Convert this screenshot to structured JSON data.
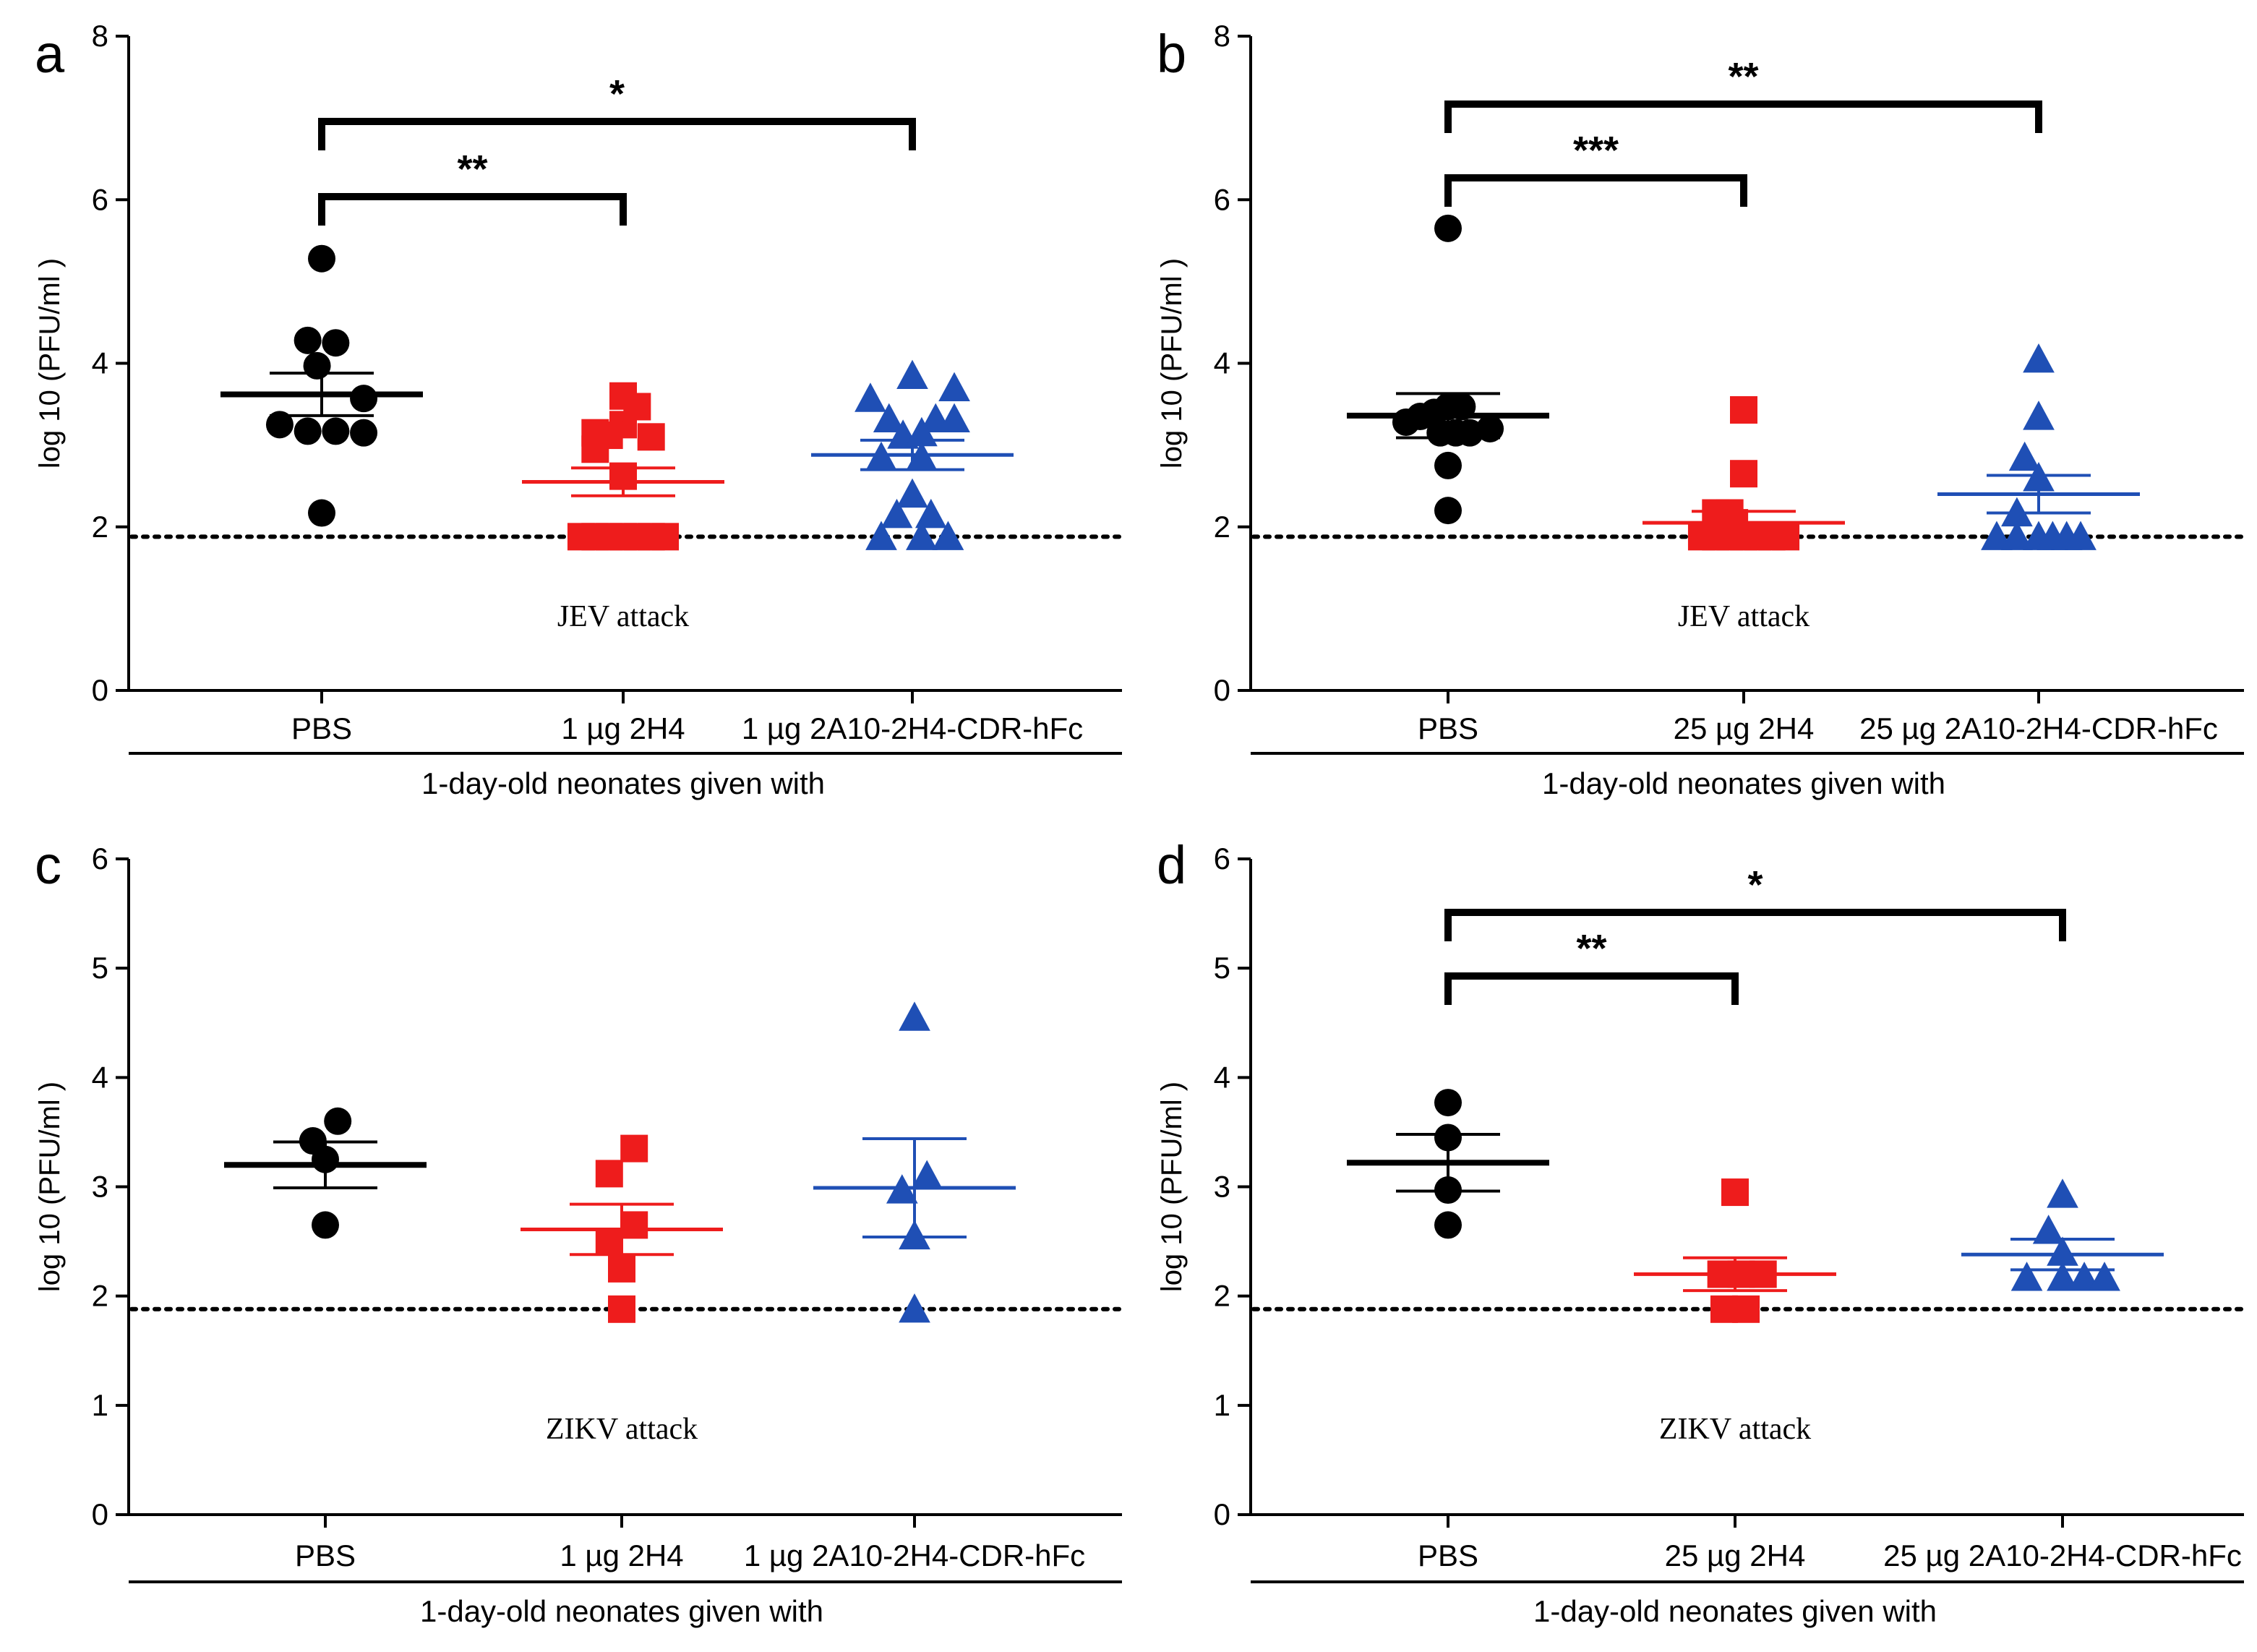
{
  "chart_data": [
    {
      "panel": "a",
      "type": "scatter",
      "ylabel": "log 10 (PFU/ml )",
      "ylim": [
        0,
        8
      ],
      "yticks": [
        "0",
        "2",
        "4",
        "6",
        "8"
      ],
      "detection_limit": 1.88,
      "annotation": "JEV attack",
      "group_label": "1-day-old neonates given with",
      "categories": [
        "PBS",
        "1 µg 2H4",
        "1 µg 2A10-2H4-CDR-hFc"
      ],
      "series": [
        {
          "name": "PBS",
          "marker": "circle",
          "color": "#000000",
          "mean": 3.62,
          "sem": 0.26,
          "points": [
            [
              0.0,
              5.28
            ],
            [
              -0.09,
              4.28
            ],
            [
              0.09,
              4.25
            ],
            [
              -0.03,
              3.97
            ],
            [
              -0.27,
              3.25
            ],
            [
              -0.09,
              3.17
            ],
            [
              0.09,
              3.17
            ],
            [
              0.27,
              3.15
            ],
            [
              0.27,
              3.57
            ],
            [
              0.0,
              2.17
            ]
          ]
        },
        {
          "name": "1 µg 2H4",
          "marker": "square",
          "color": "#ee1c1c",
          "mean": 2.55,
          "sem": 0.17,
          "points": [
            [
              0.0,
              3.6
            ],
            [
              0.09,
              3.47
            ],
            [
              0.0,
              3.25
            ],
            [
              -0.18,
              3.15
            ],
            [
              -0.09,
              3.12
            ],
            [
              0.18,
              3.1
            ],
            [
              -0.18,
              2.95
            ],
            [
              0.0,
              2.62
            ],
            [
              -0.27,
              1.88
            ],
            [
              -0.18,
              1.88
            ],
            [
              -0.09,
              1.88
            ],
            [
              0.0,
              1.88
            ],
            [
              0.09,
              1.88
            ],
            [
              0.18,
              1.88
            ],
            [
              0.27,
              1.88
            ]
          ]
        },
        {
          "name": "1 µg 2A10-2H4-CDR-hFc",
          "marker": "triangle",
          "color": "#1f4fb5",
          "mean": 2.88,
          "sem": 0.18,
          "points": [
            [
              0.0,
              3.85
            ],
            [
              0.27,
              3.7
            ],
            [
              -0.27,
              3.57
            ],
            [
              0.15,
              3.32
            ],
            [
              -0.15,
              3.32
            ],
            [
              -0.06,
              3.12
            ],
            [
              0.06,
              3.15
            ],
            [
              0.27,
              3.32
            ],
            [
              -0.2,
              2.85
            ],
            [
              0.06,
              2.85
            ],
            [
              0.0,
              2.4
            ],
            [
              -0.1,
              2.15
            ],
            [
              0.12,
              2.15
            ],
            [
              -0.2,
              1.88
            ],
            [
              0.06,
              1.88
            ],
            [
              0.23,
              1.88
            ]
          ]
        }
      ],
      "significance": [
        {
          "from": 0,
          "to": 1,
          "label": "**"
        },
        {
          "from": 0,
          "to": 2,
          "label": "*"
        }
      ]
    },
    {
      "panel": "b",
      "type": "scatter",
      "ylabel": "log 10 (PFU/ml )",
      "ylim": [
        0,
        8
      ],
      "yticks": [
        "0",
        "2",
        "4",
        "6",
        "8"
      ],
      "detection_limit": 1.88,
      "annotation": "JEV attack",
      "group_label": "1-day-old neonates given with",
      "categories": [
        "PBS",
        "25 µg 2H4",
        "25 µg 2A10-2H4-CDR-hFc"
      ],
      "series": [
        {
          "name": "PBS",
          "marker": "circle",
          "color": "#000000",
          "mean": 3.36,
          "sem": 0.27,
          "points": [
            [
              0.0,
              5.65
            ],
            [
              -0.09,
              3.4
            ],
            [
              0.0,
              3.47
            ],
            [
              0.09,
              3.47
            ],
            [
              -0.27,
              3.28
            ],
            [
              -0.18,
              3.35
            ],
            [
              -0.05,
              3.15
            ],
            [
              0.05,
              3.15
            ],
            [
              0.14,
              3.15
            ],
            [
              0.27,
              3.2
            ],
            [
              0.0,
              2.75
            ],
            [
              0.0,
              2.2
            ]
          ]
        },
        {
          "name": "25 µg 2H4",
          "marker": "square",
          "color": "#ee1c1c",
          "mean": 2.05,
          "sem": 0.14,
          "points": [
            [
              0.0,
              3.43
            ],
            [
              0.0,
              2.65
            ],
            [
              -0.18,
              2.17
            ],
            [
              -0.09,
              2.17
            ],
            [
              -0.27,
              1.88
            ],
            [
              -0.18,
              1.88
            ],
            [
              -0.09,
              1.88
            ],
            [
              0.0,
              1.88
            ],
            [
              0.09,
              1.88
            ],
            [
              0.18,
              1.88
            ],
            [
              0.27,
              1.88
            ],
            [
              -0.06,
              2.05
            ]
          ]
        },
        {
          "name": "25 µg 2A10-2H4-CDR-hFc",
          "marker": "triangle",
          "color": "#1f4fb5",
          "mean": 2.4,
          "sem": 0.23,
          "points": [
            [
              0.0,
              4.05
            ],
            [
              0.0,
              3.35
            ],
            [
              -0.09,
              2.85
            ],
            [
              0.0,
              2.6
            ],
            [
              -0.14,
              2.17
            ],
            [
              -0.27,
              1.88
            ],
            [
              -0.14,
              1.88
            ],
            [
              0.0,
              1.88
            ],
            [
              0.09,
              1.88
            ],
            [
              0.18,
              1.88
            ],
            [
              0.27,
              1.88
            ]
          ]
        }
      ],
      "significance": [
        {
          "from": 0,
          "to": 1,
          "label": "***"
        },
        {
          "from": 0,
          "to": 2,
          "label": "**"
        }
      ]
    },
    {
      "panel": "c",
      "type": "scatter",
      "ylabel": "log 10 (PFU/ml )",
      "ylim": [
        0,
        6
      ],
      "yticks": [
        "0",
        "1",
        "2",
        "3",
        "4",
        "5",
        "6"
      ],
      "detection_limit": 1.88,
      "annotation": "ZIKV attack",
      "group_label": "1-day-old neonates given with",
      "categories": [
        "PBS",
        "1 µg 2H4",
        "1 µg 2A10-2H4-CDR-hFc"
      ],
      "series": [
        {
          "name": "PBS",
          "marker": "circle",
          "color": "#000000",
          "mean": 3.2,
          "sem": 0.21,
          "points": [
            [
              0.08,
              3.6
            ],
            [
              -0.08,
              3.42
            ],
            [
              0.0,
              3.25
            ],
            [
              0.0,
              2.65
            ]
          ]
        },
        {
          "name": "1 µg 2H4",
          "marker": "square",
          "color": "#ee1c1c",
          "mean": 2.61,
          "sem": 0.23,
          "points": [
            [
              0.08,
              3.35
            ],
            [
              -0.08,
              3.12
            ],
            [
              0.08,
              2.65
            ],
            [
              -0.08,
              2.5
            ],
            [
              0.0,
              2.25
            ],
            [
              0.0,
              1.88
            ]
          ]
        },
        {
          "name": "1 µg 2A10-2H4-CDR-hFc",
          "marker": "triangle",
          "color": "#1f4fb5",
          "mean": 2.99,
          "sem": 0.45,
          "points": [
            [
              0.0,
              4.55
            ],
            [
              0.08,
              3.1
            ],
            [
              -0.08,
              2.97
            ],
            [
              0.0,
              2.55
            ],
            [
              0.0,
              1.88
            ]
          ]
        }
      ],
      "significance": []
    },
    {
      "panel": "d",
      "type": "scatter",
      "ylabel": "log 10 (PFU/ml )",
      "ylim": [
        0,
        6
      ],
      "yticks": [
        "0",
        "1",
        "2",
        "3",
        "4",
        "5",
        "6"
      ],
      "detection_limit": 1.88,
      "annotation": "ZIKV attack",
      "group_label": "1-day-old neonates given with",
      "categories": [
        "PBS",
        "25 µg 2H4",
        "25 µg 2A10-2H4-CDR-hFc"
      ],
      "series": [
        {
          "name": "PBS",
          "marker": "circle",
          "color": "#000000",
          "mean": 3.22,
          "sem": 0.26,
          "points": [
            [
              0.0,
              3.77
            ],
            [
              0.0,
              3.45
            ],
            [
              0.0,
              2.97
            ],
            [
              0.0,
              2.65
            ]
          ]
        },
        {
          "name": "25 µg 2H4",
          "marker": "square",
          "color": "#ee1c1c",
          "mean": 2.2,
          "sem": 0.15,
          "points": [
            [
              0.0,
              2.95
            ],
            [
              -0.09,
              2.2
            ],
            [
              0.04,
              2.2
            ],
            [
              0.18,
              2.2
            ],
            [
              -0.07,
              1.88
            ],
            [
              0.07,
              1.88
            ]
          ]
        },
        {
          "name": "25 µg 2A10-2H4-CDR-hFc",
          "marker": "triangle",
          "color": "#1f4fb5",
          "mean": 2.38,
          "sem": 0.14,
          "points": [
            [
              0.0,
              2.93
            ],
            [
              -0.09,
              2.6
            ],
            [
              0.0,
              2.4
            ],
            [
              -0.23,
              2.17
            ],
            [
              0.0,
              2.17
            ],
            [
              0.14,
              2.17
            ],
            [
              0.27,
              2.17
            ]
          ]
        }
      ],
      "significance": [
        {
          "from": 0,
          "to": 1,
          "label": "**"
        },
        {
          "from": 0,
          "to": 2,
          "label": "*"
        }
      ]
    }
  ]
}
